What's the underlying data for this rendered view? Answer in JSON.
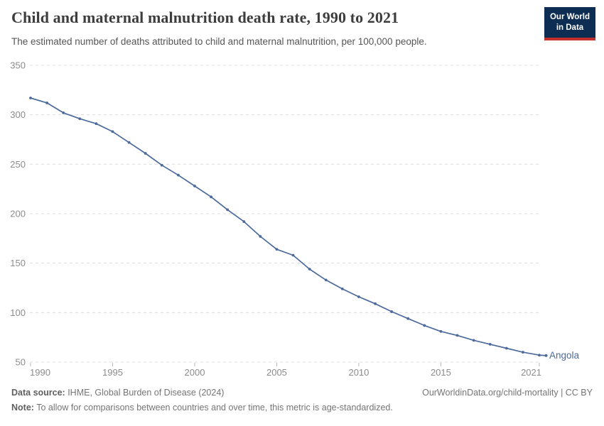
{
  "header": {
    "title": "Child and maternal malnutrition death rate, 1990 to 2021",
    "subtitle": "The estimated number of deaths attributed to child and maternal malnutrition, per 100,000 people.",
    "logo": {
      "line1": "Our World",
      "line2": "in Data",
      "bg_color": "#0d2d52",
      "accent_color": "#c4302d"
    }
  },
  "chart_data": {
    "type": "line",
    "title": "Child and maternal malnutrition death rate, 1990 to 2021",
    "xlabel": "",
    "ylabel": "",
    "ylim": [
      50,
      350
    ],
    "yticks": [
      350,
      300,
      250,
      200,
      150,
      100,
      50
    ],
    "xticks": [
      1990,
      1995,
      2000,
      2005,
      2010,
      2015,
      2021
    ],
    "grid": "horizontal-dashed",
    "legend_position": "end-of-line",
    "x": [
      1990,
      1991,
      1992,
      1993,
      1994,
      1995,
      1996,
      1997,
      1998,
      1999,
      2000,
      2001,
      2002,
      2003,
      2004,
      2005,
      2006,
      2007,
      2008,
      2009,
      2010,
      2011,
      2012,
      2013,
      2014,
      2015,
      2016,
      2017,
      2018,
      2019,
      2020,
      2021
    ],
    "series": [
      {
        "name": "Angola",
        "color": "#4c6a9c",
        "values": [
          317,
          312,
          302,
          296,
          291,
          283,
          272,
          261,
          249,
          239,
          228,
          217,
          204,
          192,
          177,
          164,
          158,
          144,
          133,
          124,
          116,
          109,
          101,
          94,
          87,
          81,
          77,
          72,
          68,
          64,
          60,
          57
        ]
      }
    ],
    "grid_color": "#dcdcdc",
    "tick_label_color": "#8c8c8c"
  },
  "footer": {
    "datasource_label": "Data source:",
    "datasource_value": " IHME, Global Burden of Disease (2024)",
    "link": "OurWorldinData.org/child-mortality | CC BY",
    "note_label": "Note:",
    "note_value": " To allow for comparisons between countries and over time, this metric is age-standardized."
  }
}
